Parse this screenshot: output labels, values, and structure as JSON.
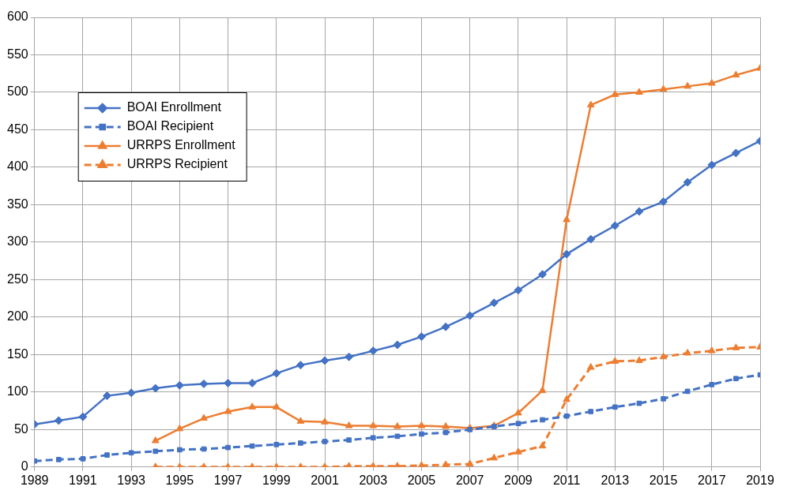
{
  "chart_data": {
    "type": "line",
    "x": [
      1989,
      1990,
      1991,
      1992,
      1993,
      1994,
      1995,
      1996,
      1997,
      1998,
      1999,
      2000,
      2001,
      2002,
      2003,
      2004,
      2005,
      2006,
      2007,
      2008,
      2009,
      2010,
      2011,
      2012,
      2013,
      2014,
      2015,
      2016,
      2017,
      2018,
      2019
    ],
    "series": [
      {
        "name": "BOAI Enrollment",
        "color": "#4472c4",
        "marker": "diamond",
        "line_style": "solid",
        "values": [
          57,
          62,
          67,
          95,
          99,
          105,
          109,
          111,
          112,
          112,
          125,
          136,
          142,
          147,
          155,
          163,
          174,
          187,
          202,
          219,
          236,
          257,
          284,
          304,
          322,
          341,
          354,
          380,
          403,
          419,
          435
        ]
      },
      {
        "name": "BOAI Recipient",
        "color": "#4472c4",
        "marker": "square",
        "line_style": "dashed",
        "values": [
          8,
          10,
          11,
          16,
          19,
          21,
          23,
          24,
          26,
          28,
          30,
          32,
          34,
          36,
          39,
          41,
          44,
          46,
          50,
          54,
          58,
          63,
          68,
          74,
          80,
          85,
          91,
          101,
          110,
          118,
          123
        ]
      },
      {
        "name": "URRPS Enrollment",
        "color": "#ed7d31",
        "marker": "triangle",
        "line_style": "solid",
        "values": [
          null,
          null,
          null,
          null,
          null,
          35,
          51,
          65,
          74,
          80,
          80,
          61,
          60,
          55,
          55,
          54,
          55,
          54,
          52,
          55,
          72,
          102,
          330,
          483,
          497,
          500,
          504,
          508,
          512,
          523,
          532
        ]
      },
      {
        "name": "URRPS Recipient",
        "color": "#ed7d31",
        "marker": "triangle",
        "line_style": "dashed",
        "values": [
          null,
          null,
          null,
          null,
          null,
          0,
          0,
          0,
          0,
          0,
          0,
          0,
          0,
          1,
          1,
          1,
          2,
          3,
          4,
          12,
          20,
          28,
          90,
          133,
          141,
          142,
          147,
          152,
          155,
          159,
          160
        ]
      }
    ],
    "xlim": [
      1989,
      2019
    ],
    "xticks": [
      1989,
      1991,
      1993,
      1995,
      1997,
      1999,
      2001,
      2003,
      2005,
      2007,
      2009,
      2011,
      2013,
      2015,
      2017,
      2019
    ],
    "ylim": [
      0,
      600
    ],
    "yticks": [
      0,
      50,
      100,
      150,
      200,
      250,
      300,
      350,
      400,
      450,
      500,
      550,
      600
    ],
    "grid": true,
    "legend": "upper left"
  }
}
